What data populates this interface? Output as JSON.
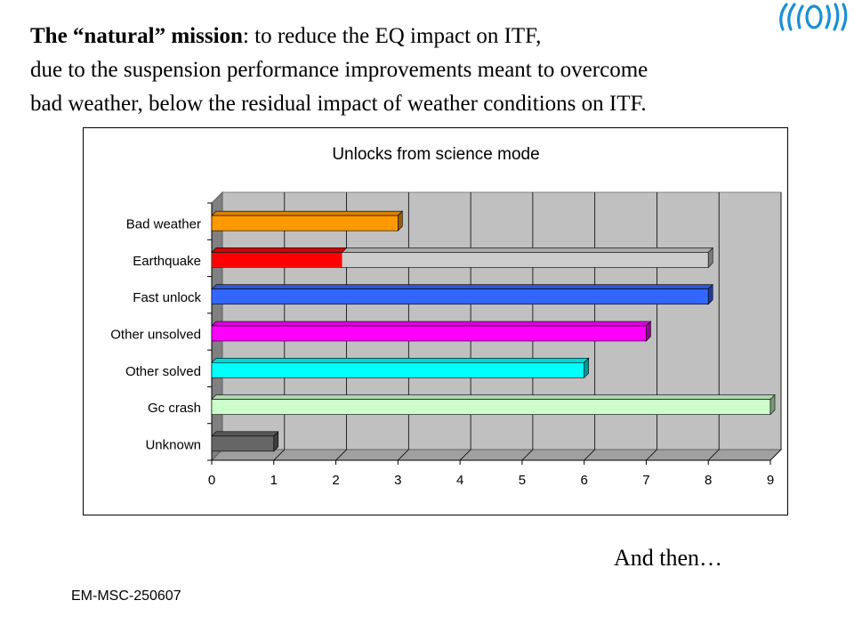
{
  "logo": {
    "name": "virgo-logo-icon"
  },
  "intro": {
    "bold_prefix": "The “natural” mission",
    "line1_rest": ": to reduce the EQ impact on ITF,",
    "line2": "due to the suspension performance improvements meant to overcome",
    "line3": "bad weather, below the residual impact of  weather conditions  on ITF."
  },
  "chart_data": {
    "type": "bar",
    "orientation": "horizontal",
    "title": "Unlocks from science mode",
    "categories": [
      "Bad weather",
      "Earthquake",
      "Fast unlock",
      "Other unsolved",
      "Other solved",
      "Gc crash",
      "Unknown"
    ],
    "series": [
      {
        "values": [
          3,
          8,
          8,
          7,
          6,
          9,
          1
        ]
      }
    ],
    "highlight": {
      "category": "Earthquake",
      "value": 2.1,
      "color": "#ff0000"
    },
    "colors": [
      "#ff9900",
      "#cccccc",
      "#3366ff",
      "#ff00ff",
      "#00ffff",
      "#ccffcc",
      "#666666"
    ],
    "xlim": [
      0,
      9
    ],
    "xticks": [
      "0",
      "1",
      "2",
      "3",
      "4",
      "5",
      "6",
      "7",
      "8",
      "9"
    ],
    "grid": true,
    "style": "3d"
  },
  "footer": {
    "right_text": "And then…",
    "left_text": "EM-MSC-250607"
  }
}
